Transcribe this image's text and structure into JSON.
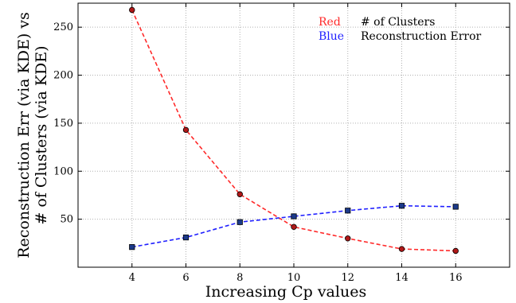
{
  "chart_data": {
    "type": "line",
    "xlabel": "Increasing Cp values",
    "ylabel_line1": "Reconstruction Err (via KDE) vs",
    "ylabel_line2": "# of Clusters (via KDE)",
    "x": [
      4,
      6,
      8,
      10,
      12,
      14,
      16
    ],
    "xlim": [
      2,
      18
    ],
    "ylim": [
      0,
      275
    ],
    "xticks": [
      4,
      6,
      8,
      10,
      12,
      14,
      16
    ],
    "yticks": [
      50,
      100,
      150,
      200,
      250
    ],
    "grid": true,
    "legend_placement": "top-right",
    "series": [
      {
        "name": "# of Clusters",
        "legend_color_word": "Red",
        "color": "#ff2a2a",
        "marker": "circle",
        "marker_fill": "#b01818",
        "values": [
          268,
          143,
          76,
          42,
          30,
          19,
          17
        ]
      },
      {
        "name": "Reconstruction Error",
        "legend_color_word": "Blue",
        "color": "#1f1fff",
        "marker": "square",
        "marker_fill": "#1c3a8a",
        "values": [
          21,
          31,
          47,
          53,
          59,
          64,
          63
        ]
      }
    ]
  }
}
